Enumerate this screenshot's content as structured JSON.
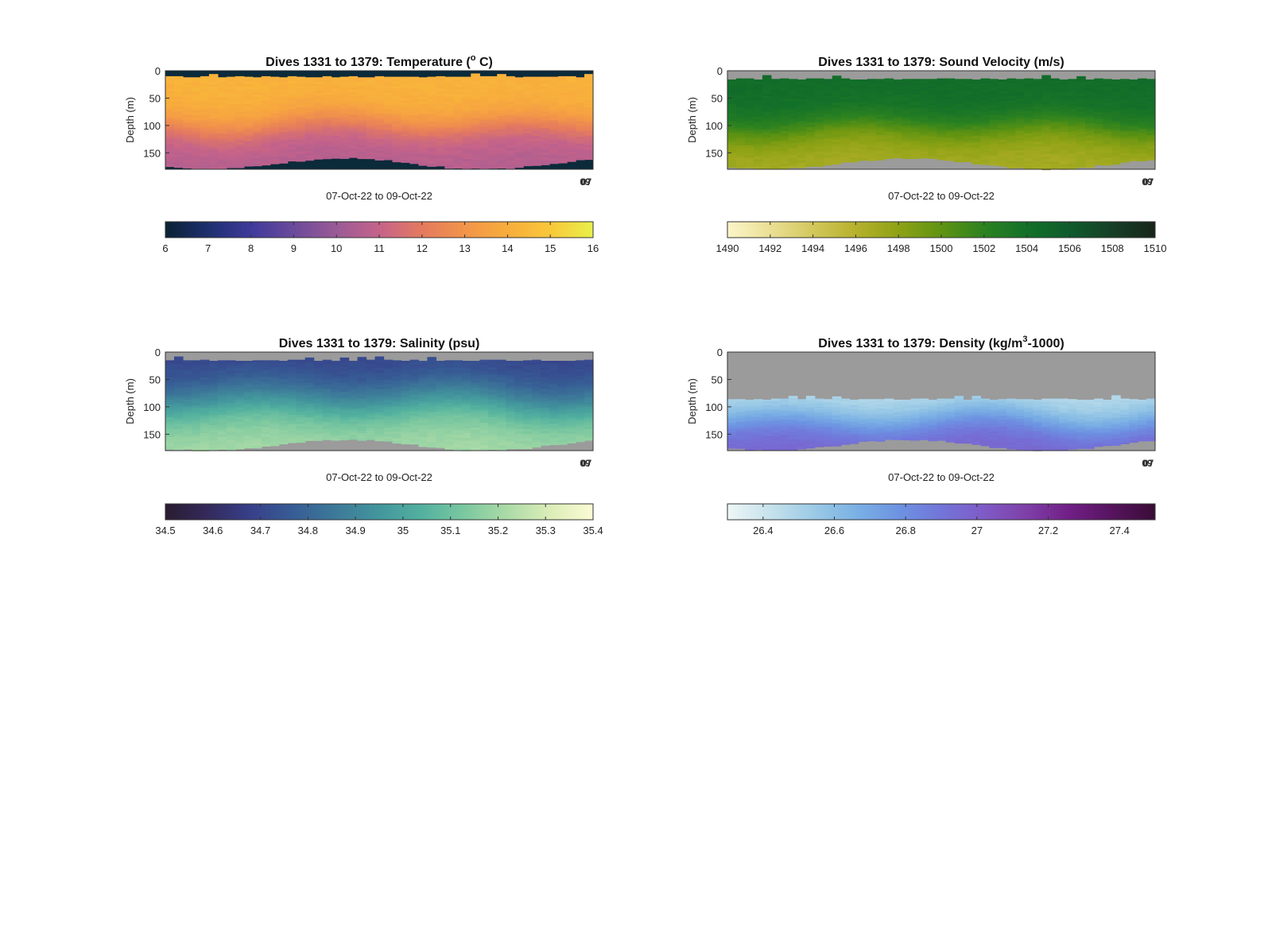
{
  "figure": {
    "x_label": "07-Oct-22 to 09-Oct-22",
    "y_label": "Depth (m)",
    "x_end_ticks": [
      "09",
      "07"
    ]
  },
  "chart_data": [
    {
      "type": "heatmap",
      "key": "temperature",
      "title": "Dives 1331 to 1379: Temperature (° C)",
      "title_main": "Dives 1331 to 1379: Temperature (",
      "title_sup": "o",
      "title_tail": " C)",
      "xlabel": "07-Oct-22 to 09-Oct-22",
      "ylabel": "Depth (m)",
      "ylim": [
        0,
        180
      ],
      "yticks": [
        0,
        50,
        100,
        150
      ],
      "y_reversed": true,
      "background": "#0b2a3a",
      "colorbar": {
        "range": [
          6,
          16
        ],
        "ticks": [
          6,
          7,
          8,
          9,
          10,
          11,
          12,
          13,
          14,
          15,
          16
        ],
        "tick_labels": [
          "6",
          "7",
          "8",
          "9",
          "10",
          "11",
          "12",
          "13",
          "14",
          "15",
          "16"
        ],
        "colormap": [
          "#0a2233",
          "#1d2f6f",
          "#3f3a9a",
          "#6b4a9b",
          "#9a5a96",
          "#c5638a",
          "#e47a5f",
          "#f2944a",
          "#f8ad3c",
          "#f9c83a",
          "#e8f04a"
        ]
      },
      "profile": {
        "surface_value": 14.2,
        "deep_value": 10.6,
        "thermocline_depth": 100,
        "transition_width": 38
      },
      "valid_depth_top": 10,
      "valid_depth_bottom_range": [
        158,
        178
      ]
    },
    {
      "type": "heatmap",
      "key": "sound_velocity",
      "title": "Dives 1331 to 1379: Sound Velocity (m/s)",
      "title_main": "Dives 1331 to 1379: Sound Velocity (m/s)",
      "title_sup": "",
      "title_tail": "",
      "xlabel": "07-Oct-22 to 09-Oct-22",
      "ylabel": "Depth (m)",
      "ylim": [
        0,
        180
      ],
      "yticks": [
        0,
        50,
        100,
        150
      ],
      "y_reversed": true,
      "background": "#9b9b9b",
      "colorbar": {
        "range": [
          1490,
          1510
        ],
        "ticks": [
          1490,
          1492,
          1494,
          1496,
          1498,
          1500,
          1502,
          1504,
          1506,
          1508,
          1510
        ],
        "tick_labels": [
          "1490",
          "1492",
          "1494",
          "1496",
          "1498",
          "1500",
          "1502",
          "1504",
          "1506",
          "1508",
          "1510"
        ],
        "colormap": [
          "#fbf6c8",
          "#ebdf95",
          "#d2c85c",
          "#b6b12c",
          "#8ea215",
          "#5f9312",
          "#2c8220",
          "#137029",
          "#105b2c",
          "#153f26",
          "#18241b"
        ]
      },
      "profile": {
        "surface_value": 1504.3,
        "deep_value": 1496.8,
        "thermocline_depth": 105,
        "transition_width": 40
      },
      "valid_depth_top": 14,
      "valid_depth_bottom_range": [
        158,
        178
      ]
    },
    {
      "type": "heatmap",
      "key": "salinity",
      "title": "Dives 1331 to 1379: Salinity (psu)",
      "title_main": "Dives 1331 to 1379: Salinity (psu)",
      "title_sup": "",
      "title_tail": "",
      "xlabel": "07-Oct-22 to 09-Oct-22",
      "ylabel": "Depth (m)",
      "ylim": [
        0,
        180
      ],
      "yticks": [
        0,
        50,
        100,
        150
      ],
      "y_reversed": true,
      "background": "#9b9b9b",
      "colorbar": {
        "range": [
          34.5,
          35.4
        ],
        "ticks": [
          34.5,
          34.6,
          34.7,
          34.8,
          34.9,
          35.0,
          35.1,
          35.2,
          35.3,
          35.4
        ],
        "tick_labels": [
          "34.5",
          "34.6",
          "34.7",
          "34.8",
          "34.9",
          "35",
          "35.1",
          "35.2",
          "35.3",
          "35.4"
        ],
        "colormap": [
          "#2a1c30",
          "#342a5c",
          "#37408a",
          "#375d95",
          "#3d7a99",
          "#43969d",
          "#53b19f",
          "#7cc8a0",
          "#acdba7",
          "#dcedb8",
          "#fbfbd4"
        ]
      },
      "profile": {
        "surface_value": 34.68,
        "deep_value": 35.22,
        "thermocline_depth": 90,
        "transition_width": 60
      },
      "valid_depth_top": 14,
      "valid_depth_bottom_range": [
        158,
        178
      ]
    },
    {
      "type": "heatmap",
      "key": "density",
      "title": "Dives 1331 to 1379: Density (kg/m³-1000)",
      "title_main": "Dives 1331 to 1379: Density (kg/m",
      "title_sup": "3",
      "title_tail": "-1000)",
      "xlabel": "07-Oct-22 to 09-Oct-22",
      "ylabel": "Depth (m)",
      "ylim": [
        0,
        180
      ],
      "yticks": [
        0,
        50,
        100,
        150
      ],
      "y_reversed": true,
      "background": "#9b9b9b",
      "colorbar": {
        "range": [
          26.3,
          27.5
        ],
        "ticks": [
          26.4,
          26.6,
          26.8,
          27.0,
          27.2,
          27.4
        ],
        "tick_labels": [
          "26.4",
          "26.6",
          "26.8",
          "27",
          "27.2",
          "27.4"
        ],
        "colormap": [
          "#eef6f6",
          "#c6e2ec",
          "#9ccbe6",
          "#7bb1e4",
          "#6d93e2",
          "#7275d9",
          "#7f5bc6",
          "#7f3fa8",
          "#701f86",
          "#56145e",
          "#3a0c36"
        ]
      },
      "profile": {
        "surface_value": 26.45,
        "deep_value": 26.98,
        "thermocline_depth": 125,
        "transition_width": 40
      },
      "valid_depth_top": 85,
      "valid_depth_bottom_range": [
        158,
        178
      ]
    }
  ]
}
